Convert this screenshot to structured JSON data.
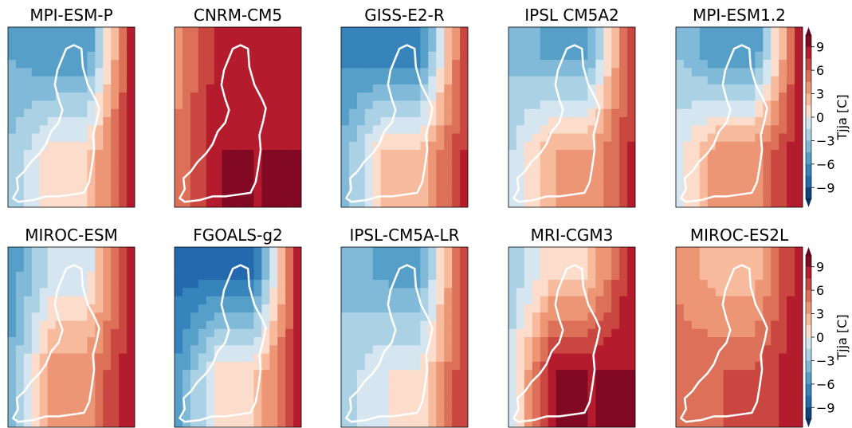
{
  "chart_data": {
    "type": "heatmap",
    "colormap": "RdBu_r (dark blue = cold, dark red = warm)",
    "colors": {
      "cold_end": "#053061",
      "neutral": "#f2f2f2",
      "warm_end": "#67001f",
      "outline": "#ffffff"
    },
    "colorbar": {
      "label": "Tjja [C]",
      "ticks": [
        "9",
        "6",
        "3",
        "0",
        "−3",
        "−6",
        "−9"
      ],
      "tick_values": [
        9,
        6,
        3,
        0,
        -3,
        -6,
        -9
      ],
      "range": [
        -10.5,
        10.5
      ],
      "extend": "both"
    },
    "panels": [
      {
        "title": "MPI-ESM-P",
        "pattern": {
          "north": -6,
          "south": 1,
          "west": -4,
          "east": 9
        }
      },
      {
        "title": "CNRM-CM5",
        "pattern": {
          "north": 8,
          "south": 9,
          "west": 3,
          "east": 9
        }
      },
      {
        "title": "GISS-E2-R",
        "pattern": {
          "north": -7,
          "south": 2,
          "west": -6,
          "east": 8
        }
      },
      {
        "title": "IPSL CM5A2",
        "pattern": {
          "north": -5,
          "south": 3,
          "west": -3,
          "east": 8
        }
      },
      {
        "title": "MPI-ESM1.2",
        "pattern": {
          "north": -6,
          "south": 4,
          "west": -2,
          "east": 9
        }
      },
      {
        "title": "MIROC-ESM",
        "pattern": {
          "north": -1,
          "south": 4,
          "west": -7,
          "east": 9
        }
      },
      {
        "title": "FGOALS-g2",
        "pattern": {
          "north": -8,
          "south": 1,
          "west": -8,
          "east": 9
        }
      },
      {
        "title": "IPSL-CM5A-LR",
        "pattern": {
          "north": -5,
          "south": 0,
          "west": -3,
          "east": 8
        }
      },
      {
        "title": "MRI-CGM3",
        "pattern": {
          "north": 1,
          "south": 9,
          "west": -4,
          "east": 9
        }
      },
      {
        "title": "MIROC-ES2L",
        "pattern": {
          "north": 2,
          "south": 6,
          "west": 5,
          "east": 9
        }
      }
    ]
  }
}
